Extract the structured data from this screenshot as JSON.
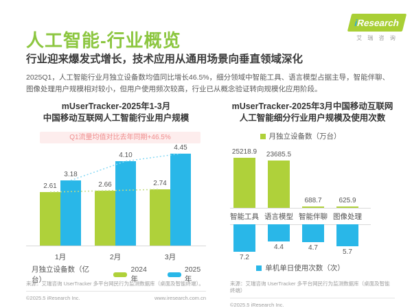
{
  "page": {
    "title": "人工智能-行业概览",
    "subtitle": "行业迎来爆发式增长，技术应用从通用场景向垂直领域深化",
    "body": "2025Q1，人工智能行业月独立设备数均值同比增长46.5%，细分领域中智能工具、语言模型占据主导，智能伴聊、图像处理用户规模相对较小，但用户使用频次较高，行业已从概念验证转向规模化应用阶段。"
  },
  "logo": {
    "brand_i": "i",
    "brand_rest": "Research",
    "caption": "艾 瑞 咨 询"
  },
  "colors": {
    "heading_green": "#8cc640",
    "bar_green": "#afd13a",
    "bar_blue": "#29b7e8",
    "banner_bg": "#fdeded",
    "banner_text": "#f08d8d",
    "trend_green": "#c3dc82",
    "trend_blue": "#86d9f5"
  },
  "chart_data": [
    {
      "type": "bar",
      "title_lines": [
        "mUserTracker-2025年1-3月",
        "中国移动互联网人工智能行业用户规模"
      ],
      "annotation": "Q1流量均值对比去年同期+46.5%",
      "categories": [
        "1月",
        "2月",
        "3月"
      ],
      "series": [
        {
          "name": "2024年",
          "color": "#afd13a",
          "values": [
            2.61,
            2.66,
            2.74
          ],
          "labels": [
            "2.61",
            "2.66",
            "2.74"
          ]
        },
        {
          "name": "2025年",
          "color": "#29b7e8",
          "values": [
            3.18,
            4.1,
            4.45
          ],
          "labels": [
            "3.18",
            "4.10",
            "4.45"
          ]
        }
      ],
      "axis_label": "月独立设备数（亿台）",
      "ylim": [
        0,
        4.7
      ],
      "grid": false,
      "legend_position": "bottom",
      "source": "来源：艾瑞咨询 UserTracker 多平台网民行为监测数据库（桌面及智能终端）。",
      "copyright": "©2025.5 iResearch Inc.",
      "website": "www.iresearch.com.cn"
    },
    {
      "type": "bar",
      "title_lines": [
        "mUserTracker-2025年3月中国移动互联网",
        "人工智能细分行业用户规模及使用次数"
      ],
      "categories": [
        "智能工具",
        "语言模型",
        "智能伴聊",
        "图像处理"
      ],
      "series": [
        {
          "name": "月独立设备数（万台）",
          "color": "#afd13a",
          "direction": "up",
          "values": [
            25218.9,
            23685.5,
            688.7,
            625.9
          ],
          "labels": [
            "25218.9",
            "23685.5",
            "688.7",
            "625.9"
          ]
        },
        {
          "name": "单机单日使用次数（次）",
          "color": "#29b7e8",
          "direction": "down",
          "values": [
            7.2,
            4.4,
            4.7,
            5.7
          ],
          "labels": [
            "7.2",
            "4.4",
            "4.7",
            "5.7"
          ]
        }
      ],
      "grid": false,
      "legend_position": "top-and-bottom",
      "source": "来源：艾瑞咨询 UserTracker 多平台网民行为监测数据库（桌面及智能终端）",
      "copyright": "©2025.5 iResearch Inc."
    }
  ]
}
